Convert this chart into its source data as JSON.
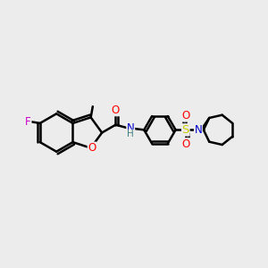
{
  "background_color": "#ececec",
  "bond_color": "#000000",
  "bond_width": 1.8,
  "figsize": [
    3.0,
    3.0
  ],
  "dpi": 100,
  "atoms": {
    "F": {
      "color": "#cc00cc",
      "fontsize": 8.5
    },
    "O": {
      "color": "#ff0000",
      "fontsize": 8.5
    },
    "N": {
      "color": "#0000cc",
      "fontsize": 8.5
    },
    "S": {
      "color": "#cccc00",
      "fontsize": 9.5
    },
    "H": {
      "color": "#408080",
      "fontsize": 7.5
    }
  }
}
